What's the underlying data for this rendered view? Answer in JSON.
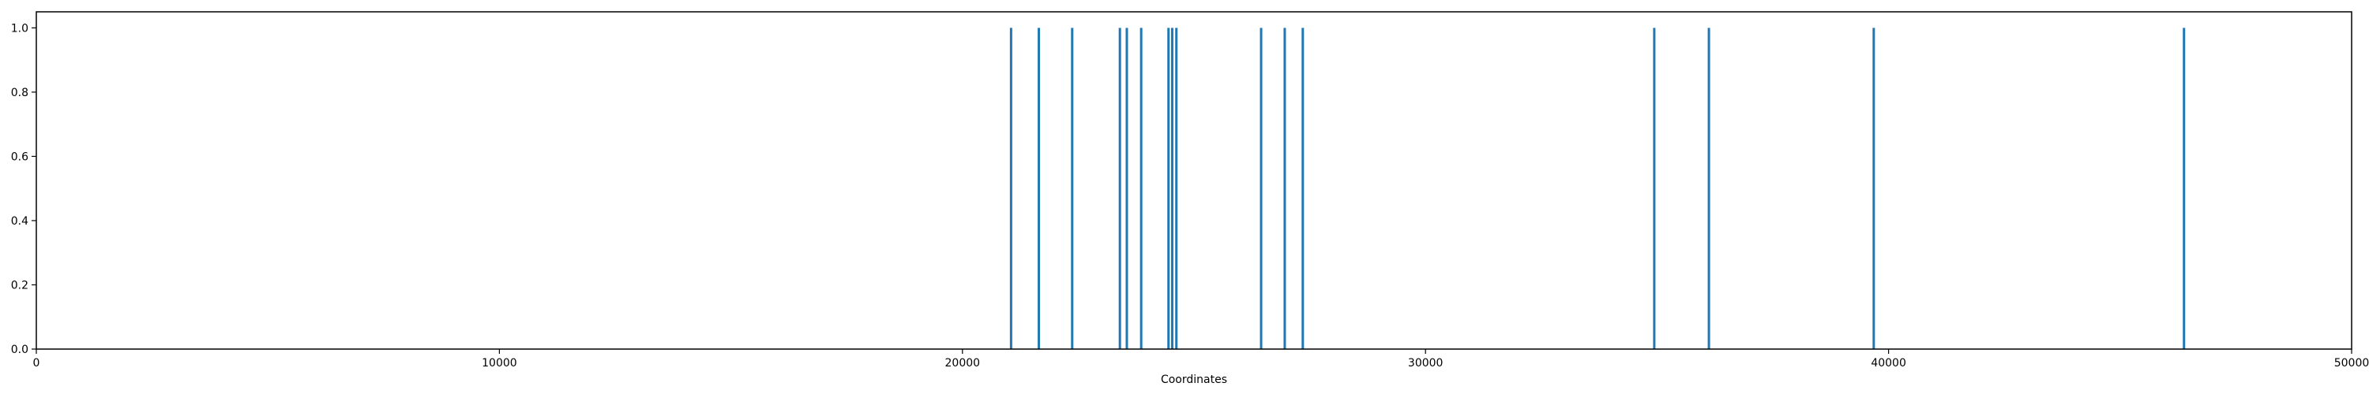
{
  "chart_data": {
    "type": "bar",
    "xlabel": "Coordinates",
    "ylabel": "",
    "xlim": [
      0,
      50000
    ],
    "ylim": [
      0,
      1.05
    ],
    "grid": false,
    "legend": false,
    "bar_color": "#1f77b4",
    "x_ticks": [
      0,
      10000,
      20000,
      30000,
      40000,
      50000
    ],
    "y_ticks": [
      0.0,
      0.2,
      0.4,
      0.6,
      0.8,
      1.0
    ],
    "x_tick_labels": [
      "0",
      "10000",
      "20000",
      "30000",
      "40000",
      "50000"
    ],
    "y_tick_labels": [
      "0.0",
      "0.2",
      "0.4",
      "0.6",
      "0.8",
      "1.0"
    ],
    "x": [
      21050,
      21650,
      22370,
      23400,
      23550,
      23860,
      24450,
      24530,
      24620,
      26450,
      26960,
      27350,
      34940,
      36120,
      39680,
      46380
    ],
    "values": [
      1,
      1,
      1,
      1,
      1,
      1,
      1,
      1,
      1,
      1,
      1,
      1,
      1,
      1,
      1,
      1
    ]
  }
}
